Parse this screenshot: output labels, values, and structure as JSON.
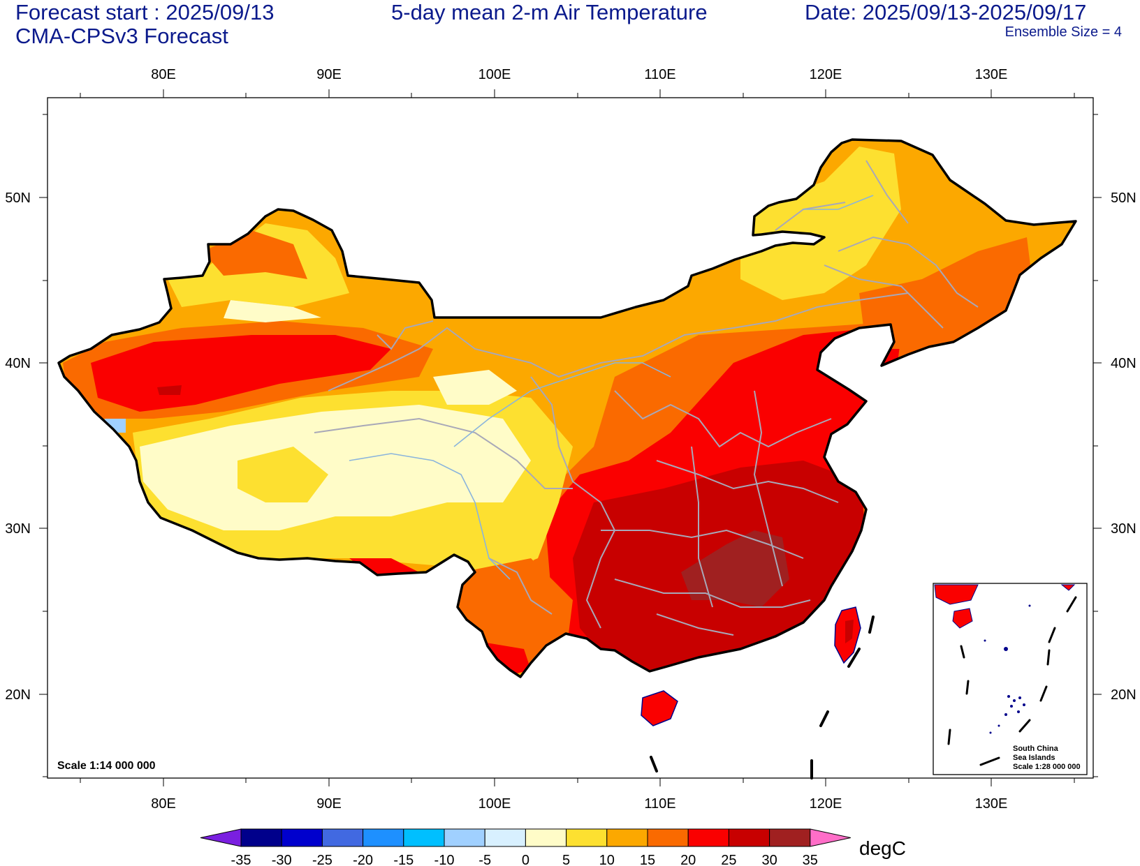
{
  "header": {
    "forecast_start": "Forecast start : 2025/09/13",
    "model": "CMA-CPSv3 Forecast",
    "title": "5-day mean 2-m Air Temperature",
    "date_range": "Date: 2025/09/13-2025/09/17",
    "ensemble": "Ensemble Size = 4"
  },
  "map": {
    "lon_range": [
      74,
      136
    ],
    "lat_range": [
      15,
      56
    ],
    "lon_ticks": [
      "80E",
      "90E",
      "100E",
      "110E",
      "120E",
      "130E"
    ],
    "lat_ticks": [
      "50N",
      "40N",
      "30N",
      "20N"
    ],
    "scale_label": "Scale 1:14 000 000"
  },
  "inset": {
    "line1": "South China",
    "line2": "Sea Islands",
    "line3": "Scale 1:28 000 000"
  },
  "colorbar": {
    "unit": "degC",
    "labels": [
      "-35",
      "-30",
      "-25",
      "-20",
      "-15",
      "-10",
      "-5",
      "0",
      "5",
      "10",
      "15",
      "20",
      "25",
      "30",
      "35"
    ],
    "colors": [
      "#7a1fe0",
      "#00008b",
      "#0000cd",
      "#4169e1",
      "#1e90ff",
      "#00bfff",
      "#a0d0ff",
      "#d8f0ff",
      "#fffcc8",
      "#fde030",
      "#fca800",
      "#fa6a00",
      "#fa0000",
      "#c80000",
      "#a02020",
      "#ff6ec8"
    ]
  }
}
